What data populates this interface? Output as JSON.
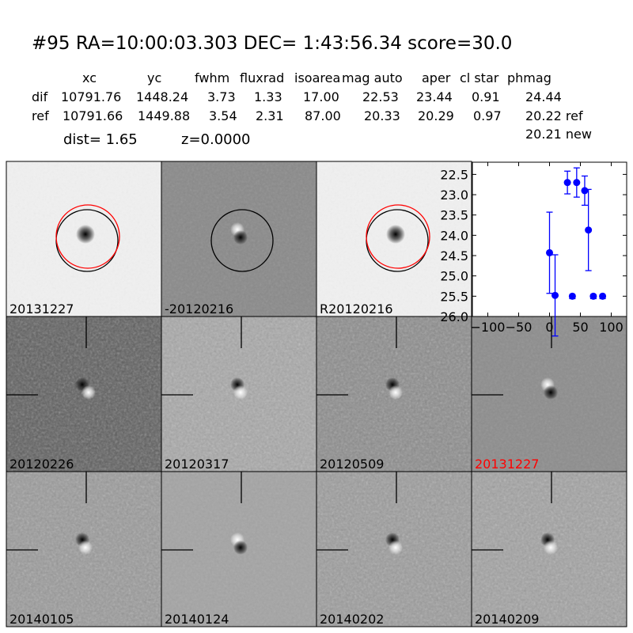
{
  "title": "#95   RA=10:00:03.303 DEC= 1:43:56.34      score=30.0",
  "table": {
    "headers": [
      "xc",
      "yc",
      "fwhm",
      "fluxrad",
      "isoarea",
      "mag auto",
      "aper",
      "cl star",
      "phmag"
    ],
    "rows": [
      {
        "label": "dif",
        "values": [
          "10791.76",
          "1448.24",
          "3.73",
          "1.33",
          "17.00",
          "22.53",
          "23.44",
          "0.91",
          "24.44"
        ]
      },
      {
        "label": "ref",
        "values": [
          "10791.66",
          "1449.88",
          "3.54",
          "2.31",
          "87.00",
          "20.33",
          "20.29",
          "0.97",
          "20.22 ref"
        ]
      }
    ],
    "extra": "20.21 new"
  },
  "dist": "dist=  1.65",
  "z": "z=0.0000",
  "panels": [
    {
      "label": "20131227",
      "bg": "#f0f0f0",
      "color": "#000000"
    },
    {
      "label": "-20120216",
      "bg": "#8a8a8a",
      "color": "#000000"
    },
    {
      "label": "R20120216",
      "bg": "#f0f0f0",
      "color": "#000000"
    },
    null,
    {
      "label": "20120226",
      "bg": "#5e5e5e",
      "color": "#000000"
    },
    {
      "label": "20120317",
      "bg": "#a8a8a8",
      "color": "#000000"
    },
    {
      "label": "20120509",
      "bg": "#8c8c8c",
      "color": "#000000"
    },
    {
      "label": "20131227",
      "bg": "#8d8d8d",
      "color": "#ff0000"
    },
    {
      "label": "20140105",
      "bg": "#9a9a9a",
      "color": "#000000"
    },
    {
      "label": "20140124",
      "bg": "#a4a4a4",
      "color": "#000000"
    },
    {
      "label": "20140202",
      "bg": "#9c9c9c",
      "color": "#000000"
    },
    {
      "label": "20140209",
      "bg": "#a2a2a2",
      "color": "#000000"
    }
  ],
  "chart_data": {
    "type": "scatter",
    "xlim": [
      -125,
      125
    ],
    "ylim": [
      26.0,
      22.2
    ],
    "y_inverted": true,
    "xticks": [
      "-100",
      "-50",
      "0",
      "50",
      "100"
    ],
    "yticks": [
      "22.5",
      "23.0",
      "23.5",
      "24.0",
      "24.5",
      "25.0",
      "25.5",
      "26.0"
    ],
    "color": "#0000ff",
    "points": [
      {
        "x": 0,
        "y": 24.43,
        "err": 1.0
      },
      {
        "x": 9,
        "y": 25.48,
        "err": 1.0
      },
      {
        "x": 29,
        "y": 22.7,
        "err": 0.28
      },
      {
        "x": 37,
        "y": 25.5,
        "limit": true
      },
      {
        "x": 44,
        "y": 22.7,
        "err": 0.36
      },
      {
        "x": 57,
        "y": 22.9,
        "err": 0.36
      },
      {
        "x": 63,
        "y": 23.87,
        "err": 1.0
      },
      {
        "x": 71,
        "y": 25.5,
        "limit": true
      },
      {
        "x": 86,
        "y": 25.5,
        "limit": true
      }
    ]
  }
}
